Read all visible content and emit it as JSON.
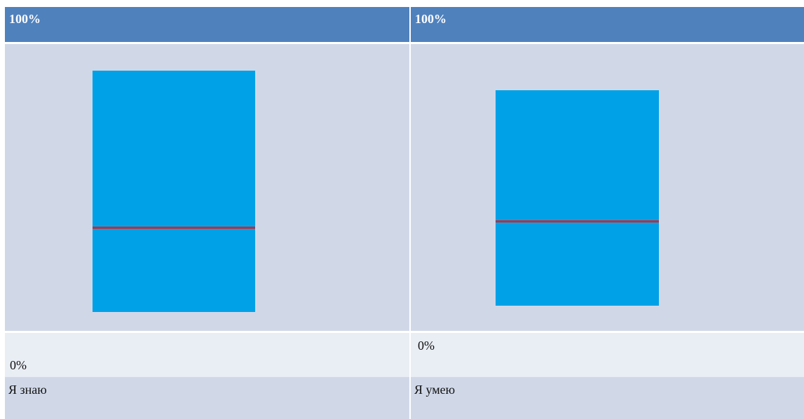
{
  "columns": [
    {
      "top_label": "100%",
      "bottom_label": "0%",
      "caption": "Я знаю",
      "level": 0.35
    },
    {
      "top_label": "100%",
      "bottom_label": "0%",
      "caption": "Я умею",
      "level": 0.39
    }
  ],
  "colors": {
    "header": "#4f81bd",
    "panel": "#d0d8e8",
    "panel_light": "#e9edf4",
    "bar": "#00a1e6",
    "level_line": "#d2262f"
  }
}
